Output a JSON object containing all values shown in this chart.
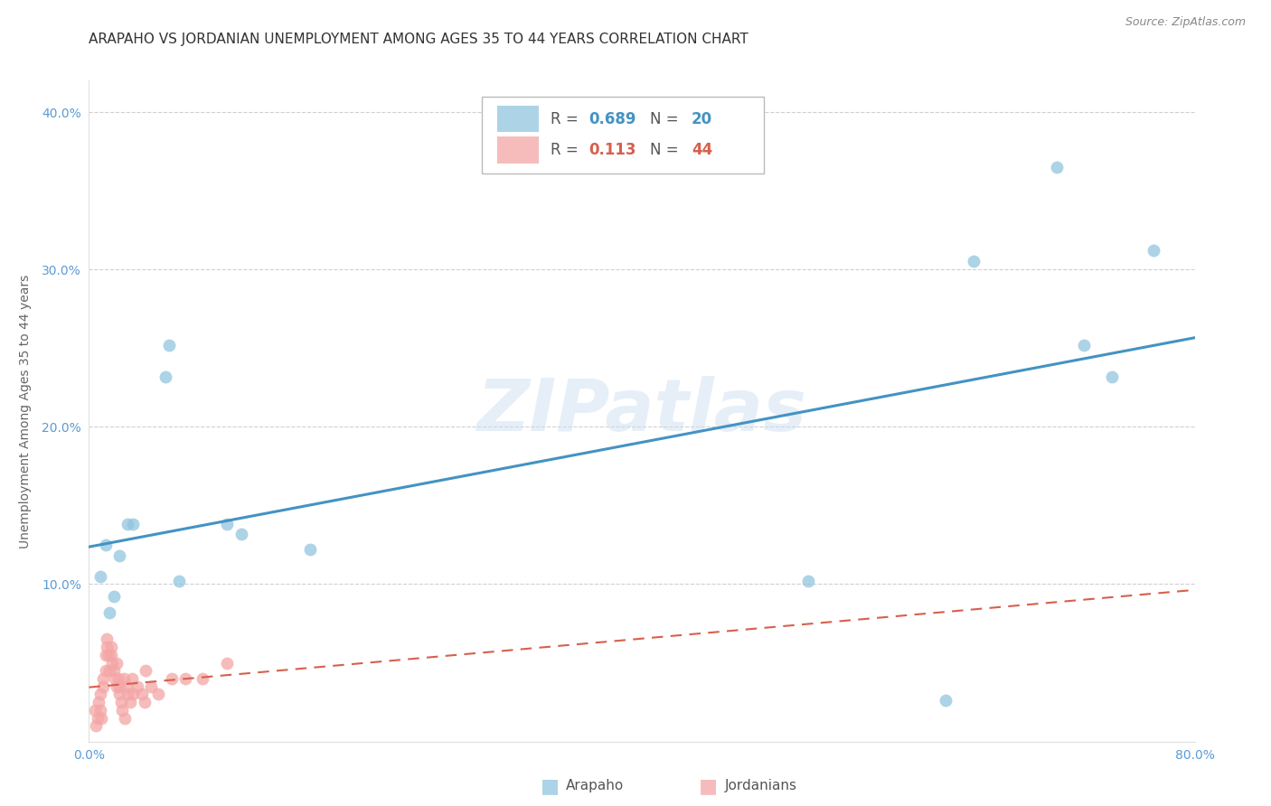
{
  "title": "ARAPAHO VS JORDANIAN UNEMPLOYMENT AMONG AGES 35 TO 44 YEARS CORRELATION CHART",
  "source": "Source: ZipAtlas.com",
  "ylabel": "Unemployment Among Ages 35 to 44 years",
  "xlim": [
    0.0,
    0.8
  ],
  "ylim": [
    0.0,
    0.42
  ],
  "xticks": [
    0.0,
    0.1,
    0.2,
    0.3,
    0.4,
    0.5,
    0.6,
    0.7,
    0.8
  ],
  "xticklabels": [
    "0.0%",
    "",
    "",
    "",
    "",
    "",
    "",
    "",
    "80.0%"
  ],
  "yticks": [
    0.0,
    0.1,
    0.2,
    0.3,
    0.4
  ],
  "yticklabels": [
    "",
    "10.0%",
    "20.0%",
    "30.0%",
    "40.0%"
  ],
  "background_color": "#ffffff",
  "watermark_text": "ZIPatlas",
  "arapaho_color": "#92c5de",
  "jordanian_color": "#f4a6a6",
  "arapaho_line_color": "#4393c3",
  "jordanian_line_color": "#d6604d",
  "R_arapaho": 0.689,
  "N_arapaho": 20,
  "R_jordanian": 0.113,
  "N_jordanian": 44,
  "arapaho_x": [
    0.008,
    0.012,
    0.015,
    0.018,
    0.022,
    0.028,
    0.032,
    0.055,
    0.058,
    0.065,
    0.1,
    0.11,
    0.16,
    0.52,
    0.62,
    0.64,
    0.7,
    0.72,
    0.74,
    0.77
  ],
  "arapaho_y": [
    0.105,
    0.125,
    0.082,
    0.092,
    0.118,
    0.138,
    0.138,
    0.232,
    0.252,
    0.102,
    0.138,
    0.132,
    0.122,
    0.102,
    0.026,
    0.305,
    0.365,
    0.252,
    0.232,
    0.312
  ],
  "jordanian_x": [
    0.004,
    0.005,
    0.006,
    0.007,
    0.008,
    0.008,
    0.009,
    0.01,
    0.01,
    0.012,
    0.012,
    0.013,
    0.013,
    0.014,
    0.015,
    0.016,
    0.016,
    0.017,
    0.018,
    0.019,
    0.02,
    0.02,
    0.021,
    0.022,
    0.022,
    0.023,
    0.024,
    0.025,
    0.026,
    0.027,
    0.028,
    0.03,
    0.031,
    0.032,
    0.035,
    0.038,
    0.04,
    0.041,
    0.045,
    0.05,
    0.06,
    0.07,
    0.082,
    0.1
  ],
  "jordanian_y": [
    0.02,
    0.01,
    0.015,
    0.025,
    0.03,
    0.02,
    0.015,
    0.035,
    0.04,
    0.045,
    0.055,
    0.06,
    0.065,
    0.055,
    0.045,
    0.06,
    0.055,
    0.05,
    0.045,
    0.04,
    0.035,
    0.05,
    0.04,
    0.035,
    0.03,
    0.025,
    0.02,
    0.04,
    0.015,
    0.035,
    0.03,
    0.025,
    0.04,
    0.03,
    0.035,
    0.03,
    0.025,
    0.045,
    0.035,
    0.03,
    0.04,
    0.04,
    0.04,
    0.05
  ],
  "tick_color": "#5b9bd5",
  "grid_color": "#d0d0d0",
  "title_fontsize": 11,
  "label_fontsize": 10,
  "tick_fontsize": 10
}
